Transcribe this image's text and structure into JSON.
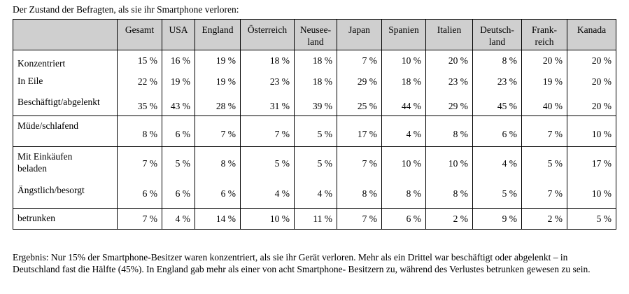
{
  "caption": "Der Zustand der Befragten, als sie ihr Smartphone verloren:",
  "columns": [
    "Gesamt",
    "USA",
    "England",
    "Österreich",
    "Neusee-\nland",
    "Japan",
    "Spanien",
    "Italien",
    "Deutsch-\nland",
    "Frank-\nreich",
    "Kanada"
  ],
  "rows": [
    {
      "label": "Konzentriert",
      "values": [
        "15 %",
        "16 %",
        "19 %",
        "18 %",
        "18 %",
        "7 %",
        "10 %",
        "20 %",
        "8 %",
        "20 %",
        "20 %"
      ]
    },
    {
      "label": "In Eile",
      "values": [
        "22 %",
        "19 %",
        "19 %",
        "23 %",
        "18 %",
        "29 %",
        "18 %",
        "23 %",
        "23 %",
        "19 %",
        "20 %"
      ]
    },
    {
      "label": "Beschäftigt/abgelenkt",
      "values": [
        "35 %",
        "43 %",
        "28 %",
        "31 %",
        "39 %",
        "25 %",
        "44 %",
        "29 %",
        "45 %",
        "40 %",
        "20 %"
      ]
    },
    {
      "label": "Müde/schlafend",
      "values": [
        "8 %",
        "6 %",
        "7 %",
        "7 %",
        "5 %",
        "17 %",
        "4 %",
        "8 %",
        "6 %",
        "7 %",
        "10 %"
      ]
    },
    {
      "label": "Mit Einkäufen\nbeladen",
      "values": [
        "7 %",
        "5 %",
        "8 %",
        "5 %",
        "5 %",
        "7 %",
        "10 %",
        "10 %",
        "4 %",
        "5 %",
        "17 %"
      ]
    },
    {
      "label": "Ängstlich/besorgt",
      "values": [
        "6 %",
        "6 %",
        "6 %",
        "4 %",
        "4 %",
        "8 %",
        "8 %",
        "8 %",
        "5 %",
        "7 %",
        "10 %"
      ]
    },
    {
      "label": "betrunken",
      "values": [
        "7 %",
        "4 %",
        "14 %",
        "10 %",
        "11 %",
        "7 %",
        "6 %",
        "2 %",
        "9 %",
        "2 %",
        "5 %"
      ]
    }
  ],
  "result": "Ergebnis: Nur 15% der Smartphone-Besitzer waren konzentriert, als sie ihr Gerät verloren. Mehr als ein Drittel war beschäftigt oder abgelenkt – in Deutschland fast die Hälfte (45%). In England  gab mehr als einer von acht Smartphone- Besitzern zu, während des Verlustes betrunken gewesen zu sein."
}
